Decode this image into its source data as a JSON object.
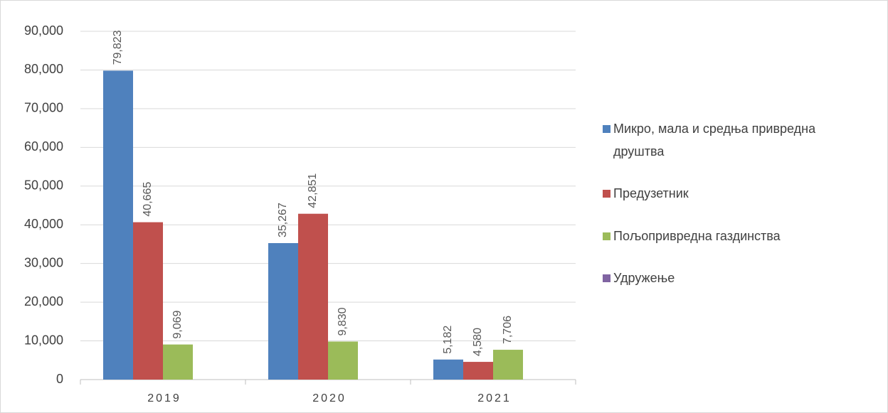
{
  "chart_data": {
    "type": "bar",
    "categories": [
      "2019",
      "2020",
      "2021"
    ],
    "series": [
      {
        "name": "Микро, мала и средња привредна друштва",
        "color": "#4f81bd",
        "values": [
          79823,
          35267,
          5182
        ],
        "value_labels": [
          "79,823",
          "35,267",
          "5,182"
        ]
      },
      {
        "name": "Предузетник",
        "color": "#c0504d",
        "values": [
          40665,
          42851,
          4580
        ],
        "value_labels": [
          "40,665",
          "42,851",
          "4,580"
        ]
      },
      {
        "name": "Пољопривредна газдинства",
        "color": "#9bbb59",
        "values": [
          9069,
          9830,
          7706
        ],
        "value_labels": [
          "9,069",
          "9,830",
          "7,706"
        ]
      },
      {
        "name": "Удружење",
        "color": "#8064a2",
        "values": [
          null,
          null,
          null
        ]
      }
    ],
    "ylim": [
      0,
      90000
    ],
    "yticks": [
      0,
      {
        "value": 10000,
        "label": "10,000"
      },
      {
        "value": 20000,
        "label": "20,000"
      },
      {
        "value": 30000,
        "label": "30,000"
      },
      {
        "value": 40000,
        "label": "40,000"
      },
      {
        "value": 50000,
        "label": "50,000"
      },
      {
        "value": 60000,
        "label": "60,000"
      },
      {
        "value": 70000,
        "label": "70,000"
      },
      {
        "value": 80000,
        "label": "80,000"
      },
      {
        "value": 90000,
        "label": "90,000"
      }
    ],
    "grid": true,
    "legend": "right"
  }
}
